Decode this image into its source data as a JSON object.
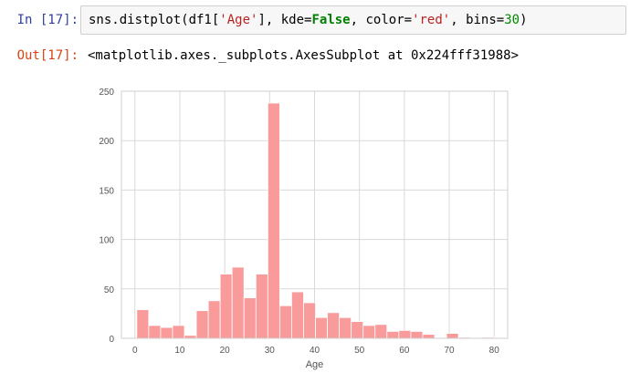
{
  "cells": {
    "input_prompt": "In [17]:",
    "code": {
      "t1": "sns.distplot(df1[",
      "t2": "'Age'",
      "t3": "], kde=",
      "t4": "False",
      "t5": ", color=",
      "t6": "'red'",
      "t7": ", bins=",
      "t8": "30",
      "t9": ")"
    },
    "output_prompt": "Out[17]:",
    "output_text": "<matplotlib.axes._subplots.AxesSubplot at 0x224fff31988>"
  },
  "colors": {
    "bar_fill": "#fa9b9b",
    "grid": "#d9d9d9",
    "axes_edge": "#cfcfcf"
  },
  "chart_data": {
    "type": "bar",
    "style": "histogram",
    "xlabel": "Age",
    "ylabel": "",
    "title": "",
    "xlim": [
      -3,
      83
    ],
    "ylim": [
      0,
      250
    ],
    "xticks": [
      0,
      10,
      20,
      30,
      40,
      50,
      60,
      70,
      80
    ],
    "yticks": [
      0,
      50,
      100,
      150,
      200,
      250
    ],
    "grid": true,
    "bin_edges": [
      0.42,
      3.07,
      5.72,
      8.38,
      11.03,
      13.68,
      16.34,
      18.99,
      21.64,
      24.29,
      26.95,
      29.6,
      32.25,
      34.9,
      37.56,
      40.21,
      42.86,
      45.51,
      48.17,
      50.82,
      53.47,
      56.12,
      58.78,
      61.43,
      64.08,
      66.74,
      69.39,
      72.04,
      74.69,
      77.35,
      80.0
    ],
    "values": [
      29,
      13,
      11,
      13,
      3,
      28,
      38,
      65,
      72,
      41,
      65,
      238,
      33,
      47,
      36,
      21,
      26,
      21,
      17,
      13,
      14,
      7,
      8,
      7,
      4,
      0,
      5,
      1,
      0,
      1
    ]
  }
}
